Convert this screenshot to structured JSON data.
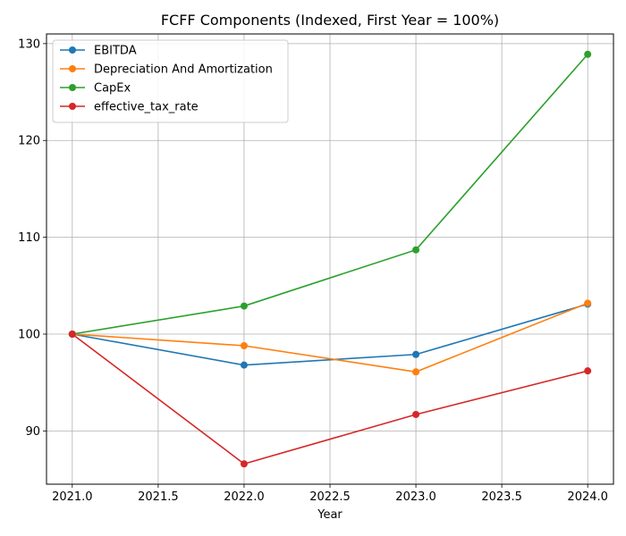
{
  "chart_data": {
    "type": "line",
    "title": "FCFF Components (Indexed, First Year = 100%)",
    "xlabel": "Year",
    "ylabel": "",
    "xlim": [
      2020.85,
      2024.15
    ],
    "ylim": [
      84.5,
      131
    ],
    "x_ticks": [
      2021.0,
      2021.5,
      2022.0,
      2022.5,
      2023.0,
      2023.5,
      2024.0
    ],
    "x_tick_labels": [
      "2021.0",
      "2021.5",
      "2022.0",
      "2022.5",
      "2023.0",
      "2023.5",
      "2024.0"
    ],
    "y_ticks": [
      90,
      100,
      110,
      120,
      130
    ],
    "y_tick_labels": [
      "90",
      "100",
      "110",
      "120",
      "130"
    ],
    "grid": true,
    "legend_position": "top-left",
    "x": [
      2021,
      2022,
      2023,
      2024
    ],
    "series": [
      {
        "name": "EBITDA",
        "color": "#1f77b4",
        "values": [
          100,
          96.8,
          97.9,
          103.1
        ]
      },
      {
        "name": "Depreciation And Amortization",
        "color": "#ff7f0e",
        "values": [
          100,
          98.8,
          96.1,
          103.2
        ]
      },
      {
        "name": "CapEx",
        "color": "#2ca02c",
        "values": [
          100,
          102.9,
          108.7,
          128.9
        ]
      },
      {
        "name": "effective_tax_rate",
        "color": "#d62728",
        "values": [
          100,
          86.6,
          91.7,
          96.2
        ]
      }
    ]
  }
}
